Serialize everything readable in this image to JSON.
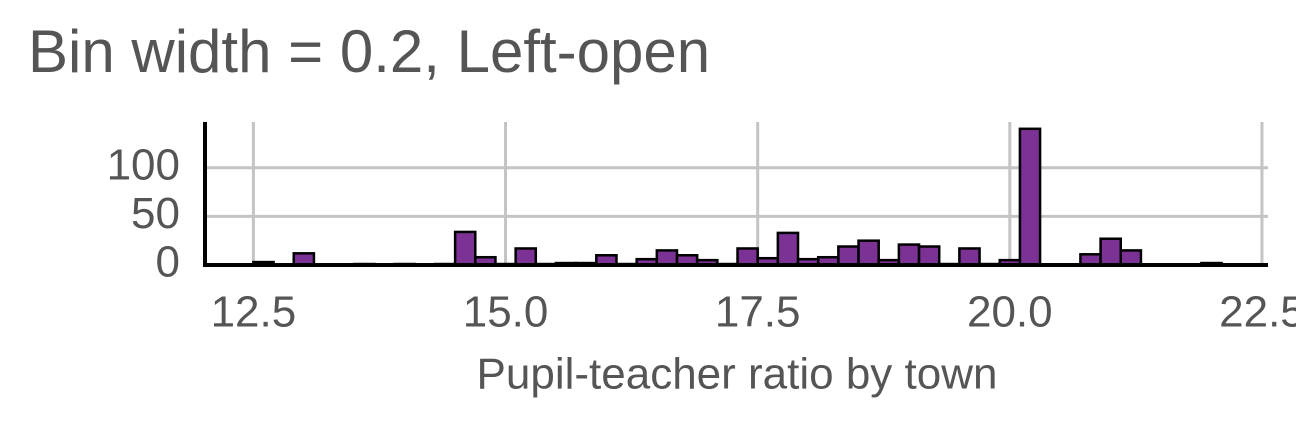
{
  "chart_data": {
    "type": "histogram",
    "title": "Bin width = 0.2, Left-open",
    "x_label": "Pupil-teacher ratio by town",
    "bins": [
      12.5,
      12.7,
      12.9,
      13.1,
      13.3,
      13.5,
      13.7,
      13.9,
      14.1,
      14.3,
      14.5,
      14.7,
      14.9,
      15.1,
      15.3,
      15.5,
      15.7,
      15.9,
      16.1,
      16.3,
      16.5,
      16.7,
      16.9,
      17.1,
      17.3,
      17.5,
      17.7,
      17.9,
      18.1,
      18.3,
      18.5,
      18.7,
      18.9,
      19.1,
      19.3,
      19.5,
      19.7,
      19.9,
      20.1,
      20.3,
      20.5,
      20.7,
      20.9,
      21.1,
      21.3,
      21.5,
      21.7,
      21.9,
      22.1
    ],
    "values": [
      3,
      0,
      12,
      0,
      0,
      1,
      0,
      1,
      0,
      1,
      34,
      8,
      1,
      17,
      1,
      2,
      2,
      10,
      1,
      6,
      15,
      10,
      5,
      1,
      17,
      7,
      33,
      6,
      8,
      19,
      25,
      5,
      21,
      19,
      1,
      17,
      1,
      5,
      140,
      0,
      0,
      11,
      27,
      15,
      0,
      0,
      0,
      2
    ],
    "color": "#7b3294",
    "xlim": [
      12.02,
      22.56
    ],
    "xticks": [
      {
        "value": 12.5,
        "label": "12.5"
      },
      {
        "value": 15,
        "label": "15.0"
      },
      {
        "value": 17.5,
        "label": "17.5"
      },
      {
        "value": 20,
        "label": "20.0"
      },
      {
        "value": 22.5,
        "label": "22.5"
      }
    ],
    "ylim": [
      0,
      147
    ],
    "yticks": [
      0,
      50,
      100
    ],
    "grid": true
  }
}
